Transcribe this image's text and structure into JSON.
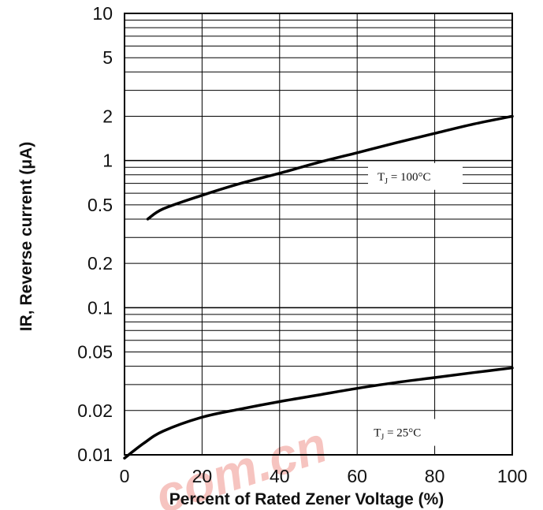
{
  "chart_data": {
    "type": "line",
    "title": "",
    "xlabel": "Percent of Rated Zener Voltage (%)",
    "ylabel": "IR, Reverse current (μA)",
    "x_scale": "linear",
    "y_scale": "log",
    "xlim": [
      0,
      100
    ],
    "ylim": [
      0.01,
      10
    ],
    "grid": true,
    "x_ticks": [
      "0",
      "20",
      "40",
      "60",
      "80",
      "100"
    ],
    "y_ticks": [
      "0.01",
      "0.02",
      "0.05",
      "0.1",
      "0.2",
      "0.5",
      "1",
      "2",
      "5",
      "10"
    ],
    "series": [
      {
        "name": "TJ = 100°C",
        "x": [
          6,
          10,
          20,
          30,
          40,
          50,
          60,
          70,
          80,
          90,
          100
        ],
        "y": [
          0.4,
          0.47,
          0.58,
          0.7,
          0.82,
          0.97,
          1.13,
          1.32,
          1.53,
          1.77,
          2.0
        ]
      },
      {
        "name": "TJ = 25°C",
        "x": [
          0,
          5,
          10,
          20,
          30,
          40,
          50,
          60,
          70,
          80,
          90,
          100
        ],
        "y": [
          0.0095,
          0.012,
          0.0145,
          0.018,
          0.0205,
          0.023,
          0.0255,
          0.0283,
          0.031,
          0.0335,
          0.0362,
          0.039
        ]
      }
    ],
    "annotations": [
      {
        "sub": "J",
        "text": "= 100°C",
        "x": 75,
        "y": 0.78
      },
      {
        "sub": "J",
        "text": "= 25°C",
        "x": 72,
        "y": 0.0142
      }
    ]
  },
  "watermark": {
    "text": "com.cn",
    "color": "#e03020"
  }
}
